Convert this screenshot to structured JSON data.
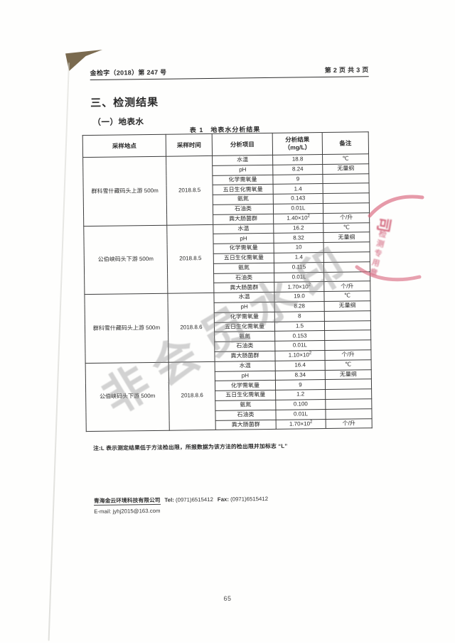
{
  "page": {
    "header_left": "金检字（2018）第 247 号",
    "header_right": "第 2 页 共 3 页",
    "section_title": "三、检测结果",
    "subsection_title": "（一）地表水",
    "table_caption": "表 1　地表水分析结果",
    "footnote": "注:L 表示测定结果低于方法检出限，所报数据为该方法的检出限并加标志 “L”",
    "page_number": "65"
  },
  "table": {
    "headers": [
      "采样地点",
      "采样时间",
      "分析项目",
      "分析结果",
      "备注"
    ],
    "result_unit": "（mg/L）",
    "groups": [
      {
        "location": "群科雪什藏码头上游 500m",
        "date": "2018.8.5",
        "rows": [
          {
            "item": "水温",
            "result": "18.8",
            "note": "℃"
          },
          {
            "item": "pH",
            "result": "8.24",
            "note": "无量纲"
          },
          {
            "item": "化学需氧量",
            "result": "9",
            "note": ""
          },
          {
            "item": "五日生化需氧量",
            "result": "1.4",
            "note": ""
          },
          {
            "item": "氨氮",
            "result": "0.143",
            "note": ""
          },
          {
            "item": "石油类",
            "result": "0.01L",
            "note": ""
          },
          {
            "item": "粪大肠菌群",
            "result": "1.40×10",
            "exp": "2",
            "note": "个/升"
          }
        ]
      },
      {
        "location": "公伯峡码头下游 500m",
        "date": "2018.8.5",
        "rows": [
          {
            "item": "水温",
            "result": "16.2",
            "note": "℃"
          },
          {
            "item": "pH",
            "result": "8.32",
            "note": "无量纲"
          },
          {
            "item": "化学需氧量",
            "result": "10",
            "note": ""
          },
          {
            "item": "五日生化需氧量",
            "result": "1.4",
            "note": ""
          },
          {
            "item": "氨氮",
            "result": "0.115",
            "note": ""
          },
          {
            "item": "石油类",
            "result": "0.01L",
            "note": ""
          },
          {
            "item": "粪大肠菌群",
            "result": "1.70×10",
            "exp": "2",
            "note": "个/升"
          }
        ]
      },
      {
        "location": "群科雪什藏码头上游 500m",
        "date": "2018.8.6",
        "rows": [
          {
            "item": "水温",
            "result": "19.0",
            "note": "℃"
          },
          {
            "item": "pH",
            "result": "8.28",
            "note": "无量纲"
          },
          {
            "item": "化学需氧量",
            "result": "8",
            "note": ""
          },
          {
            "item": "五日生化需氧量",
            "result": "1.5",
            "note": ""
          },
          {
            "item": "氨氮",
            "result": "0.153",
            "note": ""
          },
          {
            "item": "石油类",
            "result": "0.01L",
            "note": ""
          },
          {
            "item": "粪大肠菌群",
            "result": "1.10×10",
            "exp": "2",
            "note": "个/升"
          }
        ]
      },
      {
        "location": "公伯峡码头下游 500m",
        "date": "2018.8.6",
        "rows": [
          {
            "item": "水温",
            "result": "16.4",
            "note": "℃"
          },
          {
            "item": "pH",
            "result": "8.34",
            "note": "无量纲"
          },
          {
            "item": "化学需氧量",
            "result": "9",
            "note": ""
          },
          {
            "item": "五日生化需氧量",
            "result": "1.2",
            "note": ""
          },
          {
            "item": "氨氮",
            "result": "0.100",
            "note": ""
          },
          {
            "item": "石油类",
            "result": "0.01L",
            "note": ""
          },
          {
            "item": "粪大肠菌群",
            "result": "1.70×10",
            "exp": "2",
            "note": "个/升"
          }
        ]
      }
    ]
  },
  "footer": {
    "company": "青海金云环境科技有限公司",
    "tel_label": "Tel:",
    "tel": "(0971)6515412",
    "fax_label": "Fax:",
    "fax": "(0971)6515412",
    "email_label": "E-mail:",
    "email": "jyhj2015@163.com"
  },
  "overlays": {
    "watermark_text": "非会员水印",
    "stamp_char": "司",
    "stamp_column": "检测专用章"
  },
  "colors": {
    "stamp_red": "#d5607a",
    "ink": "#2a2a2a"
  }
}
